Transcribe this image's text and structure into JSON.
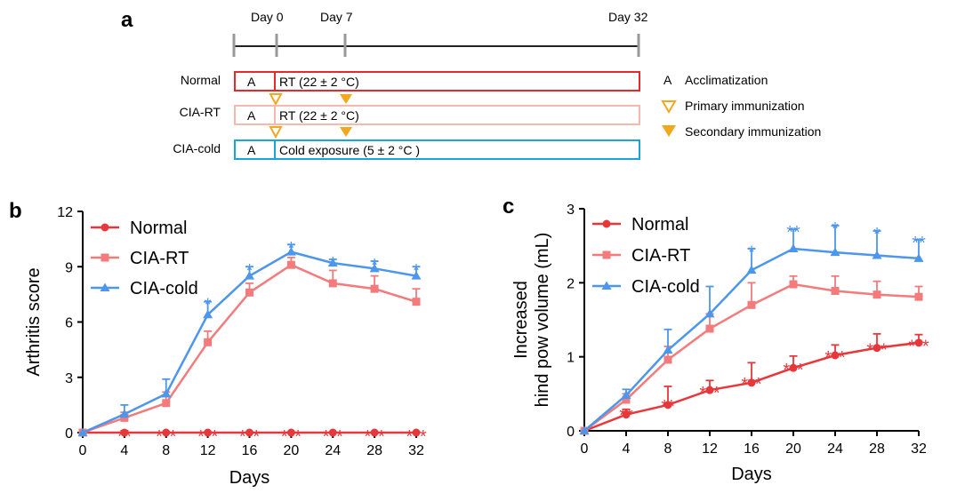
{
  "panel_a": {
    "letter": "a",
    "timeline_days": [
      {
        "label": "Day 0",
        "day": 0
      },
      {
        "label": "Day 7",
        "day": 7
      },
      {
        "label": "Day 32",
        "day": 32
      }
    ],
    "groups": [
      {
        "name": "Normal",
        "acclim": "A",
        "condition": "RT (22 ± 2 °C)",
        "color": "#e8282c",
        "primary_marker_after": true,
        "secondary_marker_after": true
      },
      {
        "name": "CIA-RT",
        "acclim": "A",
        "condition": "RT (22 ± 2 °C)",
        "color": "#f7b8b0",
        "primary_marker_after": true,
        "secondary_marker_after": true
      },
      {
        "name": "CIA-cold",
        "acclim": "A",
        "condition": "Cold exposure (5 ± 2 °C )",
        "color": "#1aa4d8",
        "primary_marker_after": false,
        "secondary_marker_after": false
      }
    ],
    "legend": [
      {
        "symbol": "A",
        "label": "Acclimatization"
      },
      {
        "symbol": "open-triangle",
        "label": "Primary immunization"
      },
      {
        "symbol": "filled-triangle",
        "label": "Secondary immunization"
      }
    ],
    "marker_color": "#f2a81d"
  },
  "chart_data": [
    {
      "panel": "b",
      "type": "line",
      "xlabel": "Days",
      "ylabel": "Arthritis score",
      "xlim": [
        0,
        32
      ],
      "ylim": [
        0,
        12
      ],
      "xticks": [
        0,
        4,
        8,
        12,
        16,
        20,
        24,
        28,
        32
      ],
      "yticks": [
        0,
        3,
        6,
        9,
        12
      ],
      "x": [
        0,
        4,
        8,
        12,
        16,
        20,
        24,
        28,
        32
      ],
      "series": [
        {
          "name": "Normal",
          "color": "#e8373b",
          "marker": "circle",
          "values": [
            0,
            0,
            0,
            0,
            0,
            0,
            0,
            0,
            0
          ],
          "errors": [
            0,
            0,
            0,
            0,
            0,
            0,
            0,
            0,
            0
          ]
        },
        {
          "name": "CIA-RT",
          "color": "#f37b7b",
          "marker": "square",
          "values": [
            0,
            0.8,
            1.6,
            4.9,
            7.6,
            9.1,
            8.1,
            7.8,
            7.1
          ],
          "errors": [
            0,
            0.3,
            0.6,
            0.6,
            0.5,
            0.4,
            0.7,
            0.7,
            0.7
          ]
        },
        {
          "name": "CIA-cold",
          "color": "#4c96ee",
          "marker": "triangle",
          "values": [
            0,
            1.0,
            2.1,
            6.4,
            8.5,
            9.8,
            9.2,
            8.9,
            8.5
          ],
          "errors": [
            0,
            0.5,
            0.8,
            0.7,
            0.5,
            0.4,
            0.2,
            0.4,
            0.5
          ]
        }
      ],
      "annotations": [
        {
          "x": 4,
          "text": "**",
          "color": "#e8373b",
          "y": 0.15
        },
        {
          "x": 8,
          "text": "***",
          "color": "#e8373b",
          "y": 0.15
        },
        {
          "x": 12,
          "text": "***",
          "color": "#e8373b",
          "y": 0.15
        },
        {
          "x": 16,
          "text": "***",
          "color": "#e8373b",
          "y": 0.15
        },
        {
          "x": 20,
          "text": "***",
          "color": "#e8373b",
          "y": 0.15
        },
        {
          "x": 24,
          "text": "***",
          "color": "#e8373b",
          "y": 0.15
        },
        {
          "x": 28,
          "text": "***",
          "color": "#e8373b",
          "y": 0.15
        },
        {
          "x": 32,
          "text": "***",
          "color": "#e8373b",
          "y": 0.15
        },
        {
          "x": 12,
          "text": "*",
          "color": "#4c96ee",
          "y": 7.3
        },
        {
          "x": 16,
          "text": "*",
          "color": "#4c96ee",
          "y": 9.15
        },
        {
          "x": 20,
          "text": "*",
          "color": "#4c96ee",
          "y": 10.35
        },
        {
          "x": 24,
          "text": "*",
          "color": "#4c96ee",
          "y": 9.55
        },
        {
          "x": 28,
          "text": "*",
          "color": "#4c96ee",
          "y": 9.45
        },
        {
          "x": 32,
          "text": "*",
          "color": "#4c96ee",
          "y": 9.15
        }
      ],
      "legend_position": "top-left"
    },
    {
      "panel": "c",
      "type": "line",
      "xlabel": "Days",
      "ylabel": "Increased hind pow volume (mL)",
      "ylabel_lines": [
        "Increased",
        "hind pow volume (mL)"
      ],
      "xlim": [
        0,
        32
      ],
      "ylim": [
        0,
        3
      ],
      "xticks": [
        0,
        4,
        8,
        12,
        16,
        20,
        24,
        28,
        32
      ],
      "yticks": [
        0,
        1,
        2,
        3
      ],
      "x": [
        0,
        4,
        8,
        12,
        16,
        20,
        24,
        28,
        32
      ],
      "series": [
        {
          "name": "Normal",
          "color": "#e8373b",
          "marker": "circle",
          "values": [
            0,
            0.22,
            0.35,
            0.55,
            0.65,
            0.85,
            1.02,
            1.12,
            1.19
          ],
          "errors": [
            0,
            0.07,
            0.25,
            0.13,
            0.27,
            0.16,
            0.14,
            0.19,
            0.11
          ]
        },
        {
          "name": "CIA-RT",
          "color": "#f37b7b",
          "marker": "square",
          "values": [
            0,
            0.42,
            0.96,
            1.38,
            1.7,
            1.98,
            1.89,
            1.84,
            1.81
          ],
          "errors": [
            0,
            0.08,
            0.18,
            0.2,
            0.3,
            0.11,
            0.2,
            0.18,
            0.14
          ]
        },
        {
          "name": "CIA-cold",
          "color": "#4c96ee",
          "marker": "triangle",
          "values": [
            0,
            0.48,
            1.09,
            1.58,
            2.17,
            2.46,
            2.41,
            2.37,
            2.33
          ],
          "errors": [
            0,
            0.08,
            0.28,
            0.37,
            0.29,
            0.26,
            0.36,
            0.33,
            0.25
          ]
        }
      ],
      "annotations": [
        {
          "x": 4,
          "text": "**",
          "color": "#e8373b",
          "y": 0.3
        },
        {
          "x": 8,
          "text": "**",
          "color": "#e8373b",
          "y": 0.42
        },
        {
          "x": 12,
          "text": "***",
          "color": "#e8373b",
          "y": 0.6
        },
        {
          "x": 16,
          "text": "***",
          "color": "#e8373b",
          "y": 0.72
        },
        {
          "x": 20,
          "text": "***",
          "color": "#e8373b",
          "y": 0.91
        },
        {
          "x": 24,
          "text": "***",
          "color": "#e8373b",
          "y": 1.08
        },
        {
          "x": 28,
          "text": "***",
          "color": "#e8373b",
          "y": 1.18
        },
        {
          "x": 32,
          "text": "***",
          "color": "#e8373b",
          "y": 1.23
        },
        {
          "x": 16,
          "text": "*",
          "color": "#4c96ee",
          "y": 2.5
        },
        {
          "x": 20,
          "text": "**",
          "color": "#4c96ee",
          "y": 2.77
        },
        {
          "x": 24,
          "text": "*",
          "color": "#4c96ee",
          "y": 2.82
        },
        {
          "x": 28,
          "text": "*",
          "color": "#4c96ee",
          "y": 2.75
        },
        {
          "x": 32,
          "text": "**",
          "color": "#4c96ee",
          "y": 2.63
        }
      ],
      "legend_position": "top-left"
    }
  ]
}
